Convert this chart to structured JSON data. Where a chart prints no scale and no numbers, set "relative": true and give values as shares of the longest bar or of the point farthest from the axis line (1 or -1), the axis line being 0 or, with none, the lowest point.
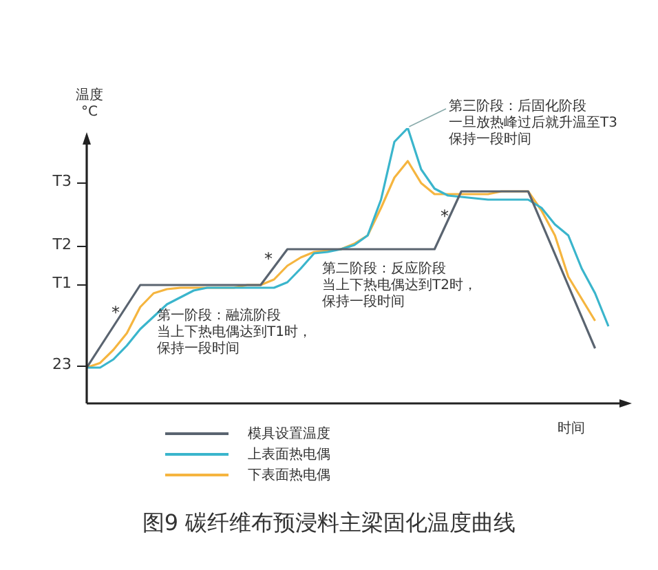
{
  "chart_data": {
    "type": "line",
    "relative": true,
    "title": "图9  碳纤维布预浸料主梁固化温度曲线",
    "xlabel": "时间",
    "ylabel": "温度 °C",
    "legend": "bottom",
    "marker": "none",
    "categories": [
      null,
      null,
      null,
      null,
      null,
      null,
      null,
      null,
      null,
      null,
      null,
      null,
      null,
      null,
      null,
      null,
      null,
      null,
      null,
      null,
      null,
      null,
      null,
      null,
      null,
      null,
      null,
      null,
      null,
      null,
      null,
      null,
      null,
      null,
      null,
      null,
      null,
      null,
      null,
      null
    ],
    "series": [
      {
        "name": "模具设置温度",
        "color": "#5a6470",
        "values": [
          0.13,
          0.205,
          0.28,
          0.355,
          0.43,
          0.43,
          0.43,
          0.43,
          0.43,
          0.43,
          0.43,
          0.43,
          0.43,
          0.43,
          0.495,
          0.56,
          0.56,
          0.56,
          0.56,
          0.56,
          0.56,
          0.56,
          0.56,
          0.56,
          0.56,
          0.56,
          0.56,
          0.665,
          0.77,
          0.77,
          0.77,
          0.77,
          0.77,
          0.77,
          0.656,
          0.542,
          0.428,
          0.314,
          0.2,
          null
        ]
      },
      {
        "name": "上表面热电偶",
        "color": "#3ab5cc",
        "values": [
          0.13,
          0.13,
          0.16,
          0.21,
          0.27,
          0.315,
          0.36,
          0.385,
          0.41,
          0.42,
          0.42,
          0.42,
          0.42,
          0.42,
          0.42,
          0.44,
          0.49,
          0.545,
          0.55,
          0.56,
          0.575,
          0.61,
          0.74,
          0.95,
          1,
          0.85,
          0.78,
          0.755,
          0.75,
          0.745,
          0.74,
          0.74,
          0.74,
          0.74,
          0.71,
          0.65,
          0.61,
          0.49,
          0.4,
          0.28
        ]
      },
      {
        "name": "下表面热电偶",
        "color": "#f5b53f",
        "values": [
          0.13,
          0.147,
          0.195,
          0.255,
          0.35,
          0.4,
          0.415,
          0.42,
          0.42,
          0.42,
          0.42,
          0.42,
          0.43,
          0.43,
          0.45,
          0.5,
          0.53,
          0.55,
          0.555,
          0.56,
          0.58,
          0.61,
          0.71,
          0.82,
          0.88,
          0.8,
          0.76,
          0.76,
          0.76,
          0.76,
          0.76,
          0.77,
          0.77,
          0.77,
          0.7,
          0.61,
          0.46,
          0.38,
          0.3,
          null
        ]
      }
    ],
    "annotations": [
      "第一阶段：融流阶段",
      "当上下热电偶达到T1时，",
      "保持一段时间",
      "第二阶段：反应阶段",
      "当上下热电偶达到T2时，",
      "保持一段时间",
      "第三阶段：后固化阶段",
      "一旦放热峰过后就升温至T3",
      "保持一段时间",
      "*",
      "*",
      "*",
      "23",
      "T1",
      "T2",
      "T3"
    ]
  }
}
